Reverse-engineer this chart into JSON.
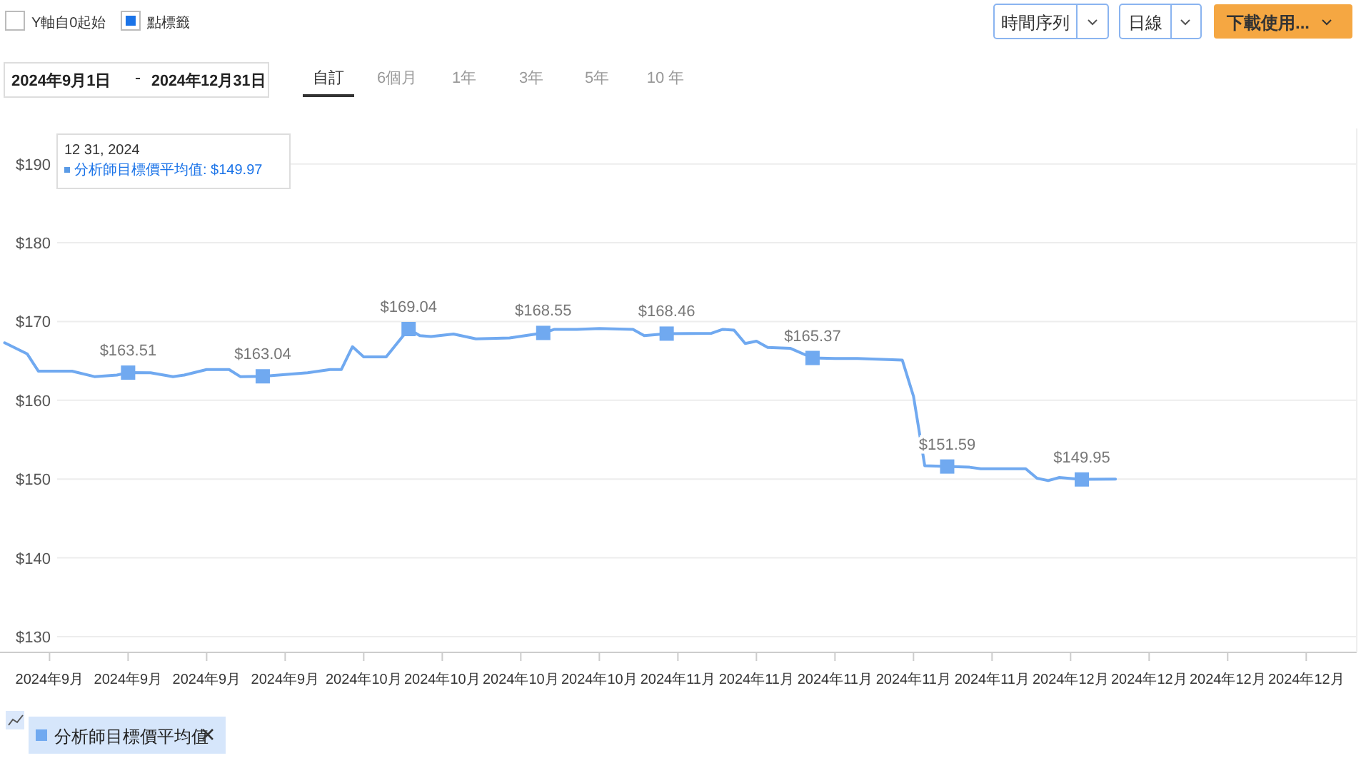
{
  "chart_data": {
    "type": "line",
    "x": [
      "2024-09-04",
      "2024-09-06",
      "2024-09-07",
      "2024-09-10",
      "2024-09-12",
      "2024-09-14",
      "2024-09-15",
      "2024-09-17",
      "2024-09-19",
      "2024-09-20",
      "2024-09-22",
      "2024-09-24",
      "2024-09-25",
      "2024-09-27",
      "2024-10-01",
      "2024-10-03",
      "2024-10-04",
      "2024-10-05",
      "2024-10-06",
      "2024-10-08",
      "2024-10-10",
      "2024-10-11",
      "2024-10-12",
      "2024-10-14",
      "2024-10-16",
      "2024-10-19",
      "2024-10-22",
      "2024-10-23",
      "2024-10-25",
      "2024-10-27",
      "2024-10-30",
      "2024-10-31",
      "2024-11-02",
      "2024-11-06",
      "2024-11-07",
      "2024-11-08",
      "2024-11-09",
      "2024-11-10",
      "2024-11-11",
      "2024-11-13",
      "2024-11-15",
      "2024-11-17",
      "2024-11-19",
      "2024-11-23",
      "2024-11-24",
      "2024-11-25",
      "2024-11-27",
      "2024-11-29",
      "2024-11-30",
      "2024-12-04",
      "2024-12-05",
      "2024-12-06",
      "2024-12-07",
      "2024-12-09",
      "2024-12-12"
    ],
    "series": [
      {
        "name": "分析師目標價平均值",
        "color": "#70a9f0",
        "values": [
          167.3,
          165.9,
          163.7,
          163.7,
          163.0,
          163.2,
          163.51,
          163.5,
          163.0,
          163.2,
          163.9,
          163.9,
          163.0,
          163.04,
          163.5,
          163.9,
          163.9,
          166.8,
          165.5,
          165.5,
          169.04,
          168.2,
          168.1,
          168.4,
          167.8,
          167.9,
          168.55,
          169.0,
          169.0,
          169.1,
          169.0,
          168.2,
          168.46,
          168.5,
          169.0,
          168.9,
          167.2,
          167.5,
          166.7,
          166.6,
          165.37,
          165.3,
          165.3,
          165.1,
          160.5,
          151.7,
          151.59,
          151.5,
          151.3,
          151.3,
          150.1,
          149.8,
          150.2,
          149.95,
          150.0
        ],
        "value_labels": [
          null,
          null,
          null,
          null,
          null,
          null,
          "$163.51",
          null,
          null,
          null,
          null,
          null,
          null,
          "$163.04",
          null,
          null,
          null,
          null,
          null,
          null,
          "$169.04",
          null,
          null,
          null,
          null,
          null,
          "$168.55",
          null,
          null,
          null,
          null,
          null,
          "$168.46",
          null,
          null,
          null,
          null,
          null,
          null,
          null,
          "$165.37",
          null,
          null,
          null,
          null,
          null,
          "$151.59",
          null,
          null,
          null,
          null,
          null,
          null,
          "$149.95",
          null
        ]
      }
    ],
    "xlim": [
      "2024-09-03T14:00",
      "2025-01-02T12:00"
    ],
    "xticks": [
      {
        "value": "2024-09-08",
        "label": "2024年9月"
      },
      {
        "value": "2024-09-15",
        "label": "2024年9月"
      },
      {
        "value": "2024-09-22",
        "label": "2024年9月"
      },
      {
        "value": "2024-09-29",
        "label": "2024年9月"
      },
      {
        "value": "2024-10-06",
        "label": "2024年10月"
      },
      {
        "value": "2024-10-13",
        "label": "2024年10月"
      },
      {
        "value": "2024-10-20",
        "label": "2024年10月"
      },
      {
        "value": "2024-10-27",
        "label": "2024年10月"
      },
      {
        "value": "2024-11-03",
        "label": "2024年11月"
      },
      {
        "value": "2024-11-10",
        "label": "2024年11月"
      },
      {
        "value": "2024-11-17",
        "label": "2024年11月"
      },
      {
        "value": "2024-11-24",
        "label": "2024年11月"
      },
      {
        "value": "2024-12-01",
        "label": "2024年11月"
      },
      {
        "value": "2024-12-08",
        "label": "2024年12月"
      },
      {
        "value": "2024-12-15",
        "label": "2024年12月"
      },
      {
        "value": "2024-12-22",
        "label": "2024年12月"
      },
      {
        "value": "2024-12-29",
        "label": "2024年12月"
      }
    ],
    "ylim": [
      128,
      194.5
    ],
    "yticks": [
      {
        "value": 130,
        "label": "$130"
      },
      {
        "value": 140,
        "label": "$140"
      },
      {
        "value": 150,
        "label": "$150"
      },
      {
        "value": 160,
        "label": "$160"
      },
      {
        "value": 170,
        "label": "$170"
      },
      {
        "value": 180,
        "label": "$180"
      },
      {
        "value": 190,
        "label": "$190"
      }
    ],
    "grid": "y",
    "legend": "bottom left",
    "annotations": [
      "Y軸自0起始",
      "點標籤",
      "時間序列",
      "日線",
      "下載使用...",
      "2024年9月1日",
      "2024年12月31日",
      "自訂",
      "6個月",
      "1年",
      "3年",
      "5年",
      "10 年",
      "12 31, 2024",
      "分析師目標價平均值: $149.97"
    ]
  }
}
